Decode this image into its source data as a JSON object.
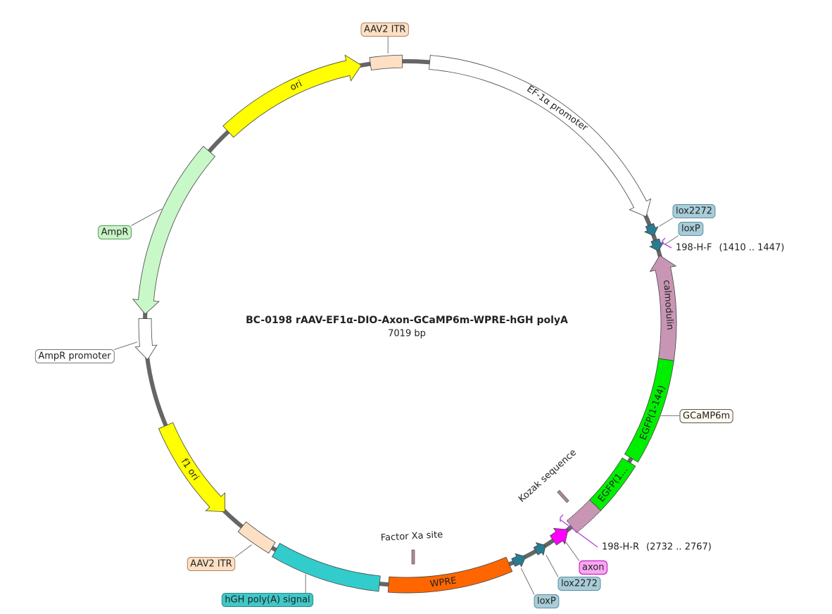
{
  "title": "BC-0198   rAAV-EF1α-DIO-Axon-GCaMP6m-WPRE-hGH polyA",
  "length": "7019 bp",
  "features": [
    {
      "label": "AAV2 ITR"
    },
    {
      "label": "EF-1α promoter"
    },
    {
      "label": "lox2272"
    },
    {
      "label": "loxP"
    },
    {
      "label": "calmodulin"
    },
    {
      "label": "GCaMP6m"
    },
    {
      "label": "EGFP(1-144)"
    },
    {
      "label": "EGFP(1..."
    },
    {
      "label": "axon"
    },
    {
      "label": "lox2272"
    },
    {
      "label": "loxP"
    },
    {
      "label": "Kozak sequence"
    },
    {
      "label": "WPRE"
    },
    {
      "label": "Factor Xa site"
    },
    {
      "label": "hGH poly(A) signal"
    },
    {
      "label": "AAV2 ITR"
    },
    {
      "label": "f1 ori"
    },
    {
      "label": "AmpR promoter"
    },
    {
      "label": "AmpR"
    },
    {
      "label": "ori"
    }
  ],
  "primers": [
    {
      "name": "198-H-F",
      "range": "(1410 .. 1447)"
    },
    {
      "name": "198-H-R",
      "range": "(2732 .. 2767)"
    }
  ]
}
